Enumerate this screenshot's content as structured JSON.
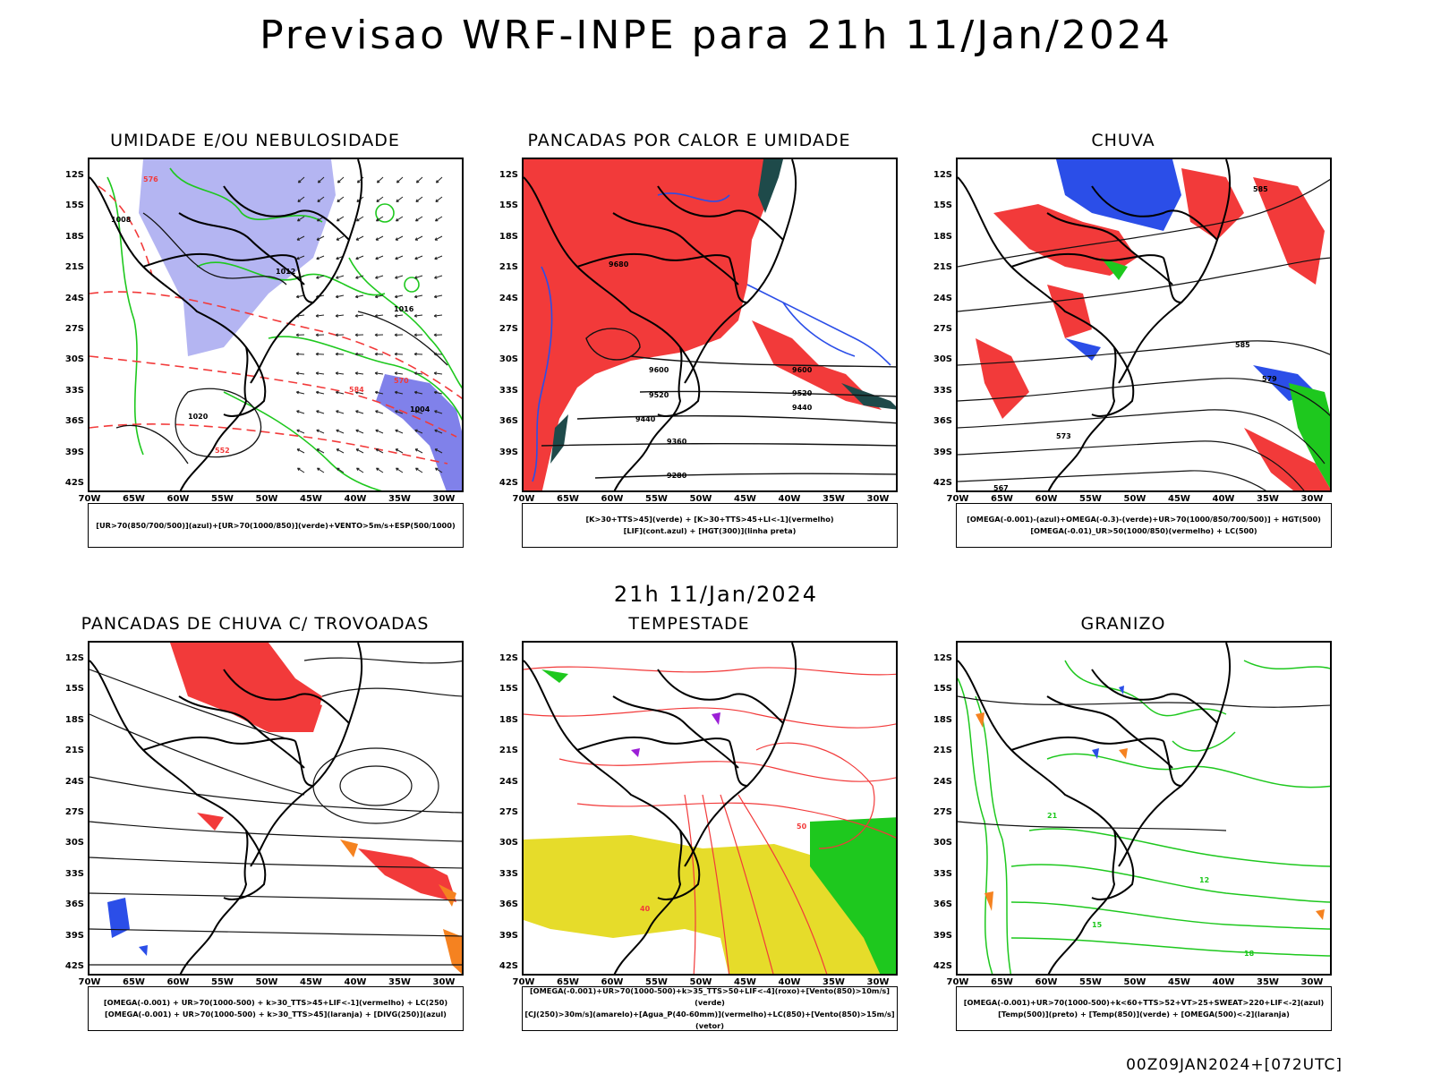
{
  "title": "Previsao WRF-INPE  para 21h 11/Jan/2024",
  "mid_title": "21h 11/Jan/2024",
  "footer": "00Z09JAN2024+[072UTC]",
  "lat_ticks": [
    "12S",
    "15S",
    "18S",
    "21S",
    "24S",
    "27S",
    "30S",
    "33S",
    "36S",
    "39S",
    "42S"
  ],
  "lon_ticks": [
    "70W",
    "65W",
    "60W",
    "55W",
    "50W",
    "45W",
    "40W",
    "35W",
    "30W"
  ],
  "colors": {
    "blue": "#2b4ee8",
    "light_blue": "#a7a8f0",
    "green": "#1ec81e",
    "red": "#f23a3a",
    "orange": "#f58220",
    "yellow": "#e6dc2a",
    "dark_teal": "#1e4a4a",
    "purple": "#9b1fd6"
  },
  "panels": [
    {
      "title": "UMIDADE E/OU NEBULOSIDADE",
      "legend_lines": [
        "[UR>70(850/700/500)](azul)+[UR>70(1000/850)](verde)+VENTO>5m/s+ESP(500/1000)"
      ]
    },
    {
      "title": "PANCADAS POR CALOR E UMIDADE",
      "legend_lines": [
        "[K>30+TTS>45](verde) + [K>30+TTS>45+LI<-1](vermelho)",
        "[LIF](cont.azul) + [HGT(300)](linha preta)"
      ]
    },
    {
      "title": "CHUVA",
      "legend_lines": [
        "[OMEGA(-0.001)-(azul)+OMEGA(-0.3)-(verde)+UR>70(1000/850/700/500)] + HGT(500)",
        "[OMEGA(-0.01)_UR>50(1000/850)(vermelho) + LC(500)"
      ]
    },
    {
      "title": "PANCADAS DE CHUVA C/ TROVOADAS",
      "legend_lines": [
        "[OMEGA(-0.001) + UR>70(1000-500) + k>30_TTS>45+LIF<-1](vermelho) + LC(250)",
        "[OMEGA(-0.001) + UR>70(1000-500) + k>30_TTS>45](laranja) + [DIVG(250)](azul)"
      ]
    },
    {
      "title": "TEMPESTADE",
      "legend_lines": [
        "[OMEGA(-0.001)+UR>70(1000-500)+k>35_TTS>50+LIF<-4](roxo)+[Vento(850)>10m/s](verde)",
        "[CJ(250)>30m/s](amarelo)+[Agua_P(40-60mm)](vermelho)+LC(850)+[Vento(850)>15m/s](vetor)"
      ]
    },
    {
      "title": "GRANIZO",
      "legend_lines": [
        "[OMEGA(-0.001)+UR>70(1000-500)+k<60+TTS>52+VT>25+SWEAT>220+LIF<-2](azul)",
        "[Temp(500)](preto) + [Temp(850)](verde) + [OMEGA(500)<-2](laranja)"
      ]
    }
  ],
  "contour_labels": {
    "p1": [
      "1012",
      "1008",
      "1016",
      "576",
      "584",
      "552",
      "1004",
      "570",
      "1020"
    ],
    "p2": [
      "9600",
      "9520",
      "9440",
      "9360",
      "9280",
      "9680"
    ],
    "p3": [
      "585",
      "579",
      "573",
      "567"
    ],
    "p5": [
      "50",
      "40"
    ],
    "p6": [
      "12",
      "15",
      "18",
      "21"
    ]
  }
}
